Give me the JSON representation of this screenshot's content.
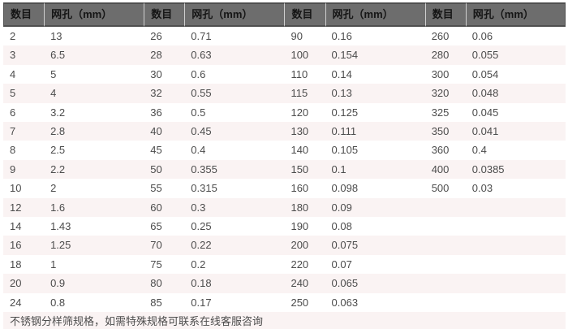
{
  "table": {
    "column_headers": [
      "数目",
      "网孔（mm）",
      "数目",
      "网孔（mm）",
      "数目",
      "网孔（mm）",
      "数目",
      "网孔（mm）"
    ],
    "rows": [
      [
        "2",
        "13",
        "26",
        "0.71",
        "90",
        "0.16",
        "260",
        "0.06"
      ],
      [
        "3",
        "6.5",
        "28",
        "0.63",
        "100",
        "0.154",
        "280",
        "0.055"
      ],
      [
        "4",
        "5",
        "30",
        "0.6",
        "110",
        "0.14",
        "300",
        "0.054"
      ],
      [
        "5",
        "4",
        "32",
        "0.55",
        "115",
        "0.13",
        "320",
        "0.048"
      ],
      [
        "6",
        "3.2",
        "36",
        "0.5",
        "120",
        "0.125",
        "325",
        "0.045"
      ],
      [
        "7",
        "2.8",
        "40",
        "0.45",
        "130",
        "0.111",
        "350",
        "0.041"
      ],
      [
        "8",
        "2.5",
        "45",
        "0.4",
        "140",
        "0.105",
        "360",
        "0.4"
      ],
      [
        "9",
        "2.2",
        "50",
        "0.355",
        "150",
        "0.1",
        "400",
        "0.0385"
      ],
      [
        "10",
        "2",
        "55",
        "0.315",
        "160",
        "0.098",
        "500",
        "0.03"
      ],
      [
        "12",
        "1.6",
        "60",
        "0.3",
        "180",
        "0.09",
        "",
        ""
      ],
      [
        "14",
        "1.43",
        "65",
        "0.25",
        "190",
        "0.08",
        "",
        ""
      ],
      [
        "16",
        "1.25",
        "70",
        "0.22",
        "200",
        "0.075",
        "",
        ""
      ],
      [
        "18",
        "1",
        "75",
        "0.2",
        "220",
        "0.07",
        "",
        ""
      ],
      [
        "20",
        "0.9",
        "80",
        "0.18",
        "240",
        "0.065",
        "",
        ""
      ],
      [
        "24",
        "0.8",
        "85",
        "0.17",
        "250",
        "0.063",
        "",
        ""
      ]
    ],
    "footer_note": "不锈钢分样筛规格，如需特殊规格可联系在线客服咨询"
  },
  "colors": {
    "header_bg": "#6d6d6d",
    "header_text": "#151515",
    "header_border": "#4f4f4f",
    "header_separator": "#cfcfcf",
    "row_bg": "#ffffff",
    "row_alt_bg": "#faf3f3",
    "body_text": "#4c4c4c"
  }
}
